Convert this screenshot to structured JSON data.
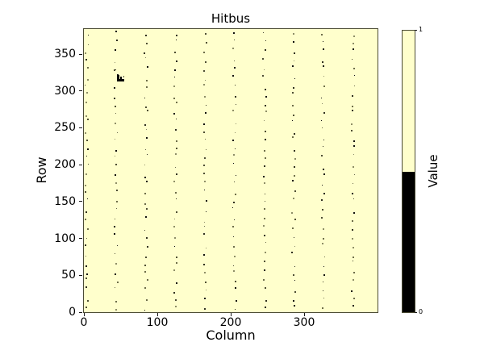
{
  "chart_data": {
    "type": "heatmap",
    "title": "Hitbus",
    "xlabel": "Column",
    "ylabel": "Row",
    "xlim": [
      0,
      400
    ],
    "ylim": [
      0,
      384
    ],
    "xticks": [
      0,
      100,
      200,
      300
    ],
    "yticks": [
      0,
      50,
      100,
      150,
      200,
      250,
      300,
      350
    ],
    "grid": false,
    "legend_position": "none",
    "background_value": 1,
    "background_color": "#ffffcc",
    "colorbar": {
      "label": "Value",
      "tick_labels": [
        "1",
        "0"
      ],
      "value_1_color": "#ffffcc",
      "value_0_color": "#000000",
      "split_fraction": 0.5
    },
    "content_summary": "Binary hit map, 400 columns x 384 rows: value 1 (pale yellow) almost everywhere; sparse value-0 pixels form jittered vertical dotted lines at every ~40th column, plus a small dark dead-pixel cluster around column 46-55, row 313-322",
    "noise_dot_columns": [
      4,
      44,
      85,
      125,
      165,
      205,
      246,
      286,
      326,
      367
    ],
    "noise_dots_per_column": 32,
    "noise_seed": 11,
    "dot_shades": [
      "#14140c",
      "#32321f",
      "#4f4f33",
      "#6e6e49",
      "#8e8e66"
    ],
    "cluster_rects": [
      {
        "col": 45.5,
        "row": 313.0,
        "w": 2.4,
        "h": 8.8,
        "shade": "#060606"
      },
      {
        "col": 49.0,
        "row": 313.0,
        "w": 2.4,
        "h": 7.0,
        "shade": "#060606"
      },
      {
        "col": 45.5,
        "row": 313.0,
        "w": 9.6,
        "h": 2.8,
        "shade": "#060606"
      },
      {
        "col": 53.5,
        "row": 318.8,
        "w": 2.0,
        "h": 2.0,
        "shade": "#55553f"
      },
      {
        "col": 43.0,
        "row": 328.5,
        "w": 1.3,
        "h": 1.3,
        "shade": "#44442f"
      }
    ]
  }
}
